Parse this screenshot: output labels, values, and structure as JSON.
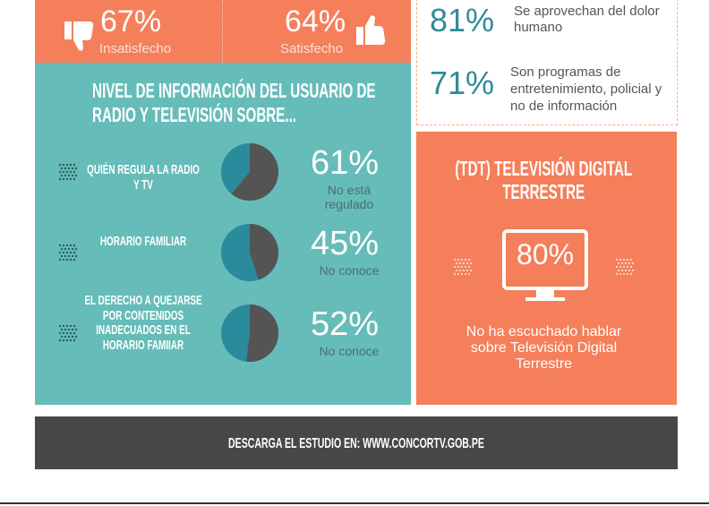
{
  "satisfaction": [
    {
      "label": "67%",
      "caption": "Insatisfecho"
    },
    {
      "label": "64%",
      "caption": "Satisfecho"
    }
  ],
  "info": {
    "title": "NIVEL DE INFORMACIÓN DEL USUARIO DE RADIO Y TELEVISIÓN SOBRE...",
    "items": [
      {
        "label": "QUIÉN REGULA LA RADIO Y TV",
        "value": 61,
        "value_label": "61%",
        "caption": "No está regulado"
      },
      {
        "label": "HORARIO FAMILIAR",
        "value": 45,
        "value_label": "45%",
        "caption": "No conoce"
      },
      {
        "label": "EL DERECHO A QUEJARSE POR CONTENIDOS INADECUADOS EN EL HORARIO FAMIIAR",
        "value": 52,
        "value_label": "52%",
        "caption": "No conoce"
      }
    ]
  },
  "opinions": [
    {
      "label": "81%",
      "text": "Se aprovechan del dolor humano"
    },
    {
      "label": "71%",
      "text": "Son programas de entretenimiento, policial y no de información"
    }
  ],
  "tdt": {
    "title": "(TDT) TELEVISIÓN DIGITAL TERRESTRE",
    "label": "80%",
    "text": "No ha escuchado hablar sobre Televisión Digital Terrestre"
  },
  "footer": "DESCARGA EL ESTUDIO EN: WWW.CONCORTV.GOB.PE"
}
